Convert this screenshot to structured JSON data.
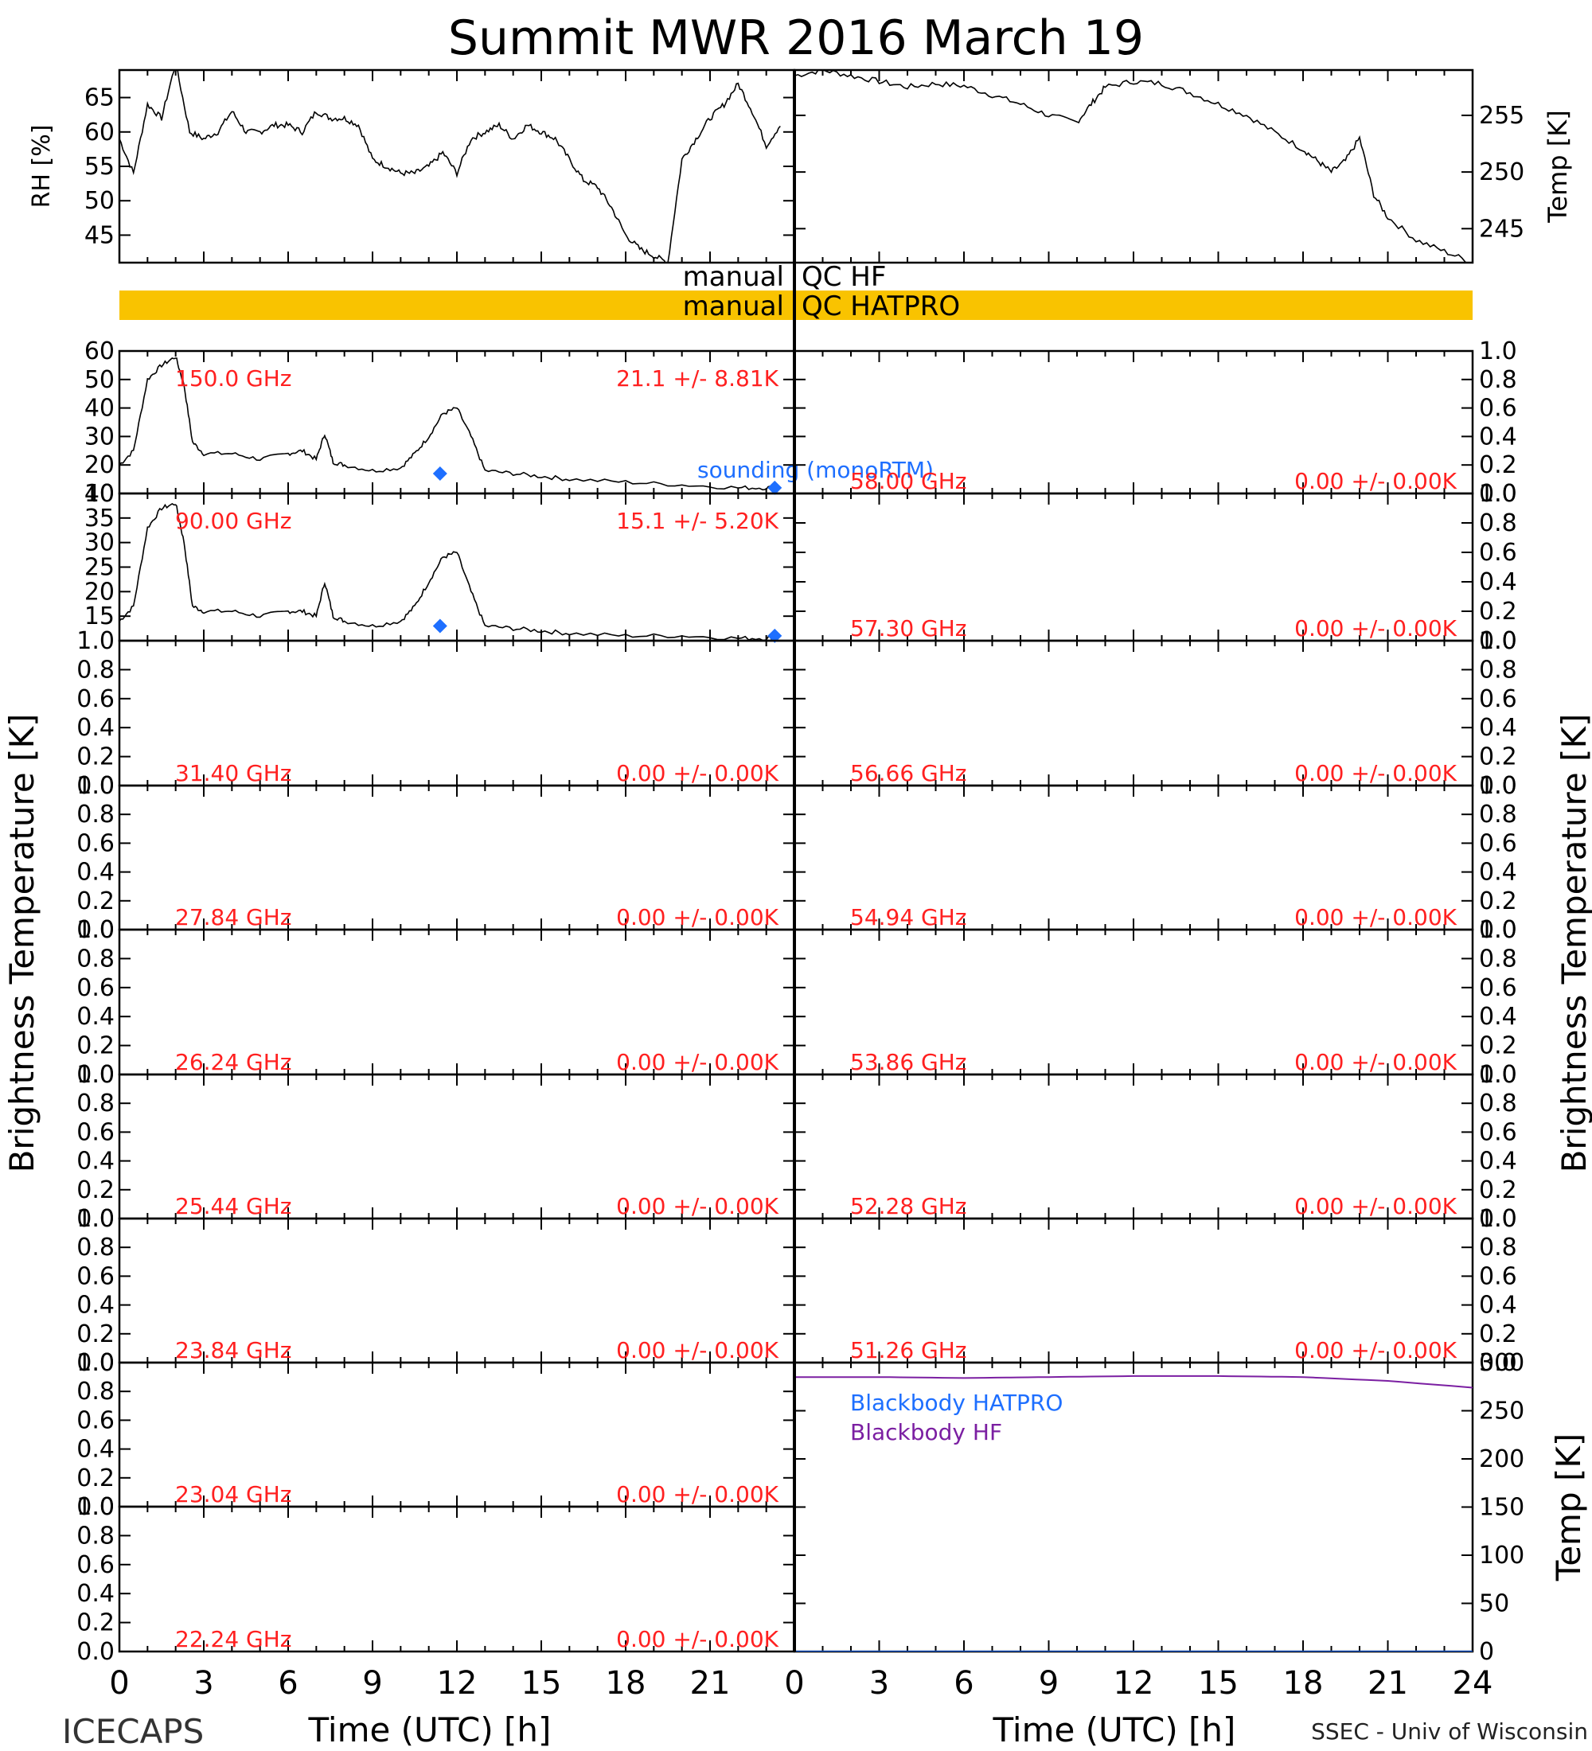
{
  "title": "Summit MWR 2016 March 19",
  "footer": {
    "left": "ICECAPS",
    "right": "SSEC - Univ of Wisconsin"
  },
  "x_axis": {
    "label": "Time (UTC) [h]",
    "ticks": [
      "0",
      "3",
      "6",
      "9",
      "12",
      "15",
      "18",
      "21",
      "0",
      "3",
      "6",
      "9",
      "12",
      "15",
      "18",
      "21",
      "24"
    ]
  },
  "side_labels": {
    "left": "Brightness Temperature [K]",
    "right": "Brightness Temperature [K]"
  },
  "qc": {
    "hf_label": "manual QC HF",
    "hatpro_label": "manual QC HATPRO",
    "hatpro_color": "#f9c300"
  },
  "colors": {
    "annotation": "#ff2020",
    "sounding": "#1e6fff",
    "blackbody_hatpro": "#1e6fff",
    "blackbody_hf": "#7b1fa2",
    "line": "#000000"
  },
  "chart_data": [
    {
      "id": "rh",
      "type": "line",
      "ylabel": "RH [%]",
      "xlim": [
        0,
        24
      ],
      "ylim": [
        41,
        69
      ],
      "yticks": [
        "45",
        "50",
        "55",
        "60",
        "65"
      ],
      "x": [
        0,
        0.5,
        1,
        1.5,
        2,
        2.5,
        3,
        3.5,
        4,
        4.5,
        5,
        5.5,
        6,
        6.5,
        7,
        7.5,
        8,
        8.5,
        9,
        9.5,
        10,
        10.5,
        11,
        11.5,
        12,
        12.5,
        13,
        13.5,
        14,
        14.5,
        15,
        15.5,
        16,
        16.5,
        17,
        17.5,
        18,
        18.5,
        19,
        19.5,
        20,
        20.5,
        21,
        21.5,
        22,
        22.5,
        23,
        23.5
      ],
      "values": [
        59,
        54,
        64,
        62,
        70,
        60,
        59,
        60,
        63,
        60,
        60,
        61,
        61,
        60,
        63,
        62,
        62,
        61,
        56,
        55,
        54,
        54,
        55,
        57,
        54,
        59,
        60,
        61,
        59,
        61,
        60,
        59,
        56,
        53,
        52,
        49,
        45,
        43,
        42,
        41,
        56,
        59,
        62,
        64,
        67,
        63,
        58,
        61
      ]
    },
    {
      "id": "temp",
      "type": "line",
      "ylabel": "Temp [K]",
      "xlim": [
        0,
        24
      ],
      "ylim": [
        242,
        259
      ],
      "yticks": [
        "245",
        "250",
        "255"
      ],
      "x": [
        0,
        1,
        2,
        3,
        4,
        5,
        6,
        7,
        8,
        9,
        10,
        10.5,
        11,
        12,
        13,
        14,
        15,
        16,
        17,
        18,
        18.5,
        19,
        19.5,
        20,
        20.5,
        21,
        22,
        23,
        24
      ],
      "values": [
        258.5,
        259,
        258.5,
        258,
        257.5,
        257.8,
        257.6,
        256.8,
        256,
        255,
        254.4,
        256,
        257.5,
        258,
        257.8,
        257,
        256,
        255,
        253.5,
        252,
        251,
        250,
        251,
        253,
        248,
        246,
        244,
        243,
        242
      ]
    },
    {
      "id": "ch-150",
      "type": "line",
      "freq": "150.0 GHz",
      "stats": "21.1 +/- 8.81K",
      "sounding_label": "sounding (monoRTM)",
      "ylim": [
        10,
        60
      ],
      "yticks": [
        "10",
        "20",
        "30",
        "40",
        "50",
        "60"
      ],
      "x": [
        0,
        0.5,
        1,
        1.5,
        2,
        2.3,
        2.6,
        3,
        4,
        5,
        6,
        6.5,
        7,
        7.3,
        7.6,
        8,
        9,
        10,
        10.5,
        11,
        11.5,
        12,
        12.5,
        13,
        14,
        15,
        16,
        18,
        20,
        22,
        23,
        23.5
      ],
      "values": [
        20,
        25,
        50,
        55,
        58,
        48,
        28,
        24,
        24,
        22,
        24,
        25,
        22,
        31,
        21,
        20,
        18,
        19,
        24,
        30,
        38,
        40,
        30,
        18,
        17,
        16,
        15,
        14,
        13,
        12,
        12,
        12
      ],
      "soundings": [
        {
          "x": 11.4,
          "y": 17
        },
        {
          "x": 23.3,
          "y": 12
        }
      ]
    },
    {
      "id": "ch-90",
      "type": "line",
      "freq": "90.00 GHz",
      "stats": "15.1 +/- 5.20K",
      "ylim": [
        10,
        40
      ],
      "yticks": [
        "15",
        "20",
        "25",
        "30",
        "35",
        "40"
      ],
      "x": [
        0,
        0.5,
        1,
        1.5,
        2,
        2.3,
        2.6,
        3,
        4,
        5,
        6,
        6.5,
        7,
        7.3,
        7.6,
        8,
        9,
        10,
        10.5,
        11,
        11.5,
        12,
        12.5,
        13,
        14,
        15,
        16,
        18,
        20,
        22,
        23,
        23.5
      ],
      "values": [
        14,
        17,
        33,
        37,
        38,
        30,
        17,
        16,
        16,
        15,
        16,
        16,
        15,
        22,
        15,
        14,
        13,
        14,
        17,
        22,
        27,
        28,
        20,
        13,
        12.5,
        12,
        11.5,
        11,
        11,
        10.5,
        10.5,
        11
      ],
      "soundings": [
        {
          "x": 11.4,
          "y": 13
        },
        {
          "x": 23.3,
          "y": 11
        }
      ]
    },
    {
      "id": "ch-31.40",
      "type": "line",
      "freq": "31.40 GHz",
      "stats": "0.00 +/- 0.00K",
      "ylim": [
        0,
        1
      ],
      "yticks": [
        "0.0",
        "0.2",
        "0.4",
        "0.6",
        "0.8",
        "1.0"
      ]
    },
    {
      "id": "ch-27.84",
      "type": "line",
      "freq": "27.84 GHz",
      "stats": "0.00 +/- 0.00K",
      "ylim": [
        0,
        1
      ],
      "yticks": [
        "0.0",
        "0.2",
        "0.4",
        "0.6",
        "0.8",
        "1.0"
      ]
    },
    {
      "id": "ch-26.24",
      "type": "line",
      "freq": "26.24 GHz",
      "stats": "0.00 +/- 0.00K",
      "ylim": [
        0,
        1
      ],
      "yticks": [
        "0.0",
        "0.2",
        "0.4",
        "0.6",
        "0.8",
        "1.0"
      ]
    },
    {
      "id": "ch-25.44",
      "type": "line",
      "freq": "25.44 GHz",
      "stats": "0.00 +/- 0.00K",
      "ylim": [
        0,
        1
      ],
      "yticks": [
        "0.0",
        "0.2",
        "0.4",
        "0.6",
        "0.8",
        "1.0"
      ]
    },
    {
      "id": "ch-23.84",
      "type": "line",
      "freq": "23.84 GHz",
      "stats": "0.00 +/- 0.00K",
      "ylim": [
        0,
        1
      ],
      "yticks": [
        "0.0",
        "0.2",
        "0.4",
        "0.6",
        "0.8",
        "1.0"
      ]
    },
    {
      "id": "ch-23.04",
      "type": "line",
      "freq": "23.04 GHz",
      "stats": "0.00 +/- 0.00K",
      "ylim": [
        0,
        1
      ],
      "yticks": [
        "0.0",
        "0.2",
        "0.4",
        "0.6",
        "0.8",
        "1.0"
      ]
    },
    {
      "id": "ch-22.24",
      "type": "line",
      "freq": "22.24 GHz",
      "stats": "0.00 +/- 0.00K",
      "ylim": [
        0,
        1
      ],
      "yticks": [
        "0.0",
        "0.2",
        "0.4",
        "0.6",
        "0.8",
        "1.0"
      ]
    },
    {
      "id": "ch-58.00",
      "type": "line",
      "freq": "58.00 GHz",
      "stats": "0.00 +/- 0.00K",
      "ylim": [
        0,
        1
      ],
      "yticks": [
        "0.0",
        "0.2",
        "0.4",
        "0.6",
        "0.8",
        "1.0"
      ]
    },
    {
      "id": "ch-57.30",
      "type": "line",
      "freq": "57.30 GHz",
      "stats": "0.00 +/- 0.00K",
      "ylim": [
        0,
        1
      ],
      "yticks": [
        "0.0",
        "0.2",
        "0.4",
        "0.6",
        "0.8",
        "1.0"
      ]
    },
    {
      "id": "ch-56.66",
      "type": "line",
      "freq": "56.66 GHz",
      "stats": "0.00 +/- 0.00K",
      "ylim": [
        0,
        1
      ],
      "yticks": [
        "0.0",
        "0.2",
        "0.4",
        "0.6",
        "0.8",
        "1.0"
      ]
    },
    {
      "id": "ch-54.94",
      "type": "line",
      "freq": "54.94 GHz",
      "stats": "0.00 +/- 0.00K",
      "ylim": [
        0,
        1
      ],
      "yticks": [
        "0.0",
        "0.2",
        "0.4",
        "0.6",
        "0.8",
        "1.0"
      ]
    },
    {
      "id": "ch-53.86",
      "type": "line",
      "freq": "53.86 GHz",
      "stats": "0.00 +/- 0.00K",
      "ylim": [
        0,
        1
      ],
      "yticks": [
        "0.0",
        "0.2",
        "0.4",
        "0.6",
        "0.8",
        "1.0"
      ]
    },
    {
      "id": "ch-52.28",
      "type": "line",
      "freq": "52.28 GHz",
      "stats": "0.00 +/- 0.00K",
      "ylim": [
        0,
        1
      ],
      "yticks": [
        "0.0",
        "0.2",
        "0.4",
        "0.6",
        "0.8",
        "1.0"
      ]
    },
    {
      "id": "ch-51.26",
      "type": "line",
      "freq": "51.26 GHz",
      "stats": "0.00 +/- 0.00K",
      "ylim": [
        0,
        1
      ],
      "yticks": [
        "0.0",
        "0.2",
        "0.4",
        "0.6",
        "0.8",
        "1.0"
      ]
    },
    {
      "id": "blackbody",
      "type": "line",
      "ylabel": "Temp [K]",
      "ylim": [
        0,
        300
      ],
      "yticks": [
        "0",
        "50",
        "100",
        "150",
        "200",
        "250",
        "300"
      ],
      "legend": [
        "Blackbody HATPRO",
        "Blackbody HF"
      ],
      "series": [
        {
          "name": "Blackbody HF",
          "x": [
            0,
            3,
            6,
            9,
            12,
            15,
            18,
            21,
            24
          ],
          "values": [
            285,
            285,
            284,
            285,
            286,
            286,
            285,
            281,
            274
          ]
        },
        {
          "name": "Blackbody HATPRO",
          "x": [
            0,
            24
          ],
          "values": [
            0,
            0
          ]
        }
      ]
    }
  ]
}
